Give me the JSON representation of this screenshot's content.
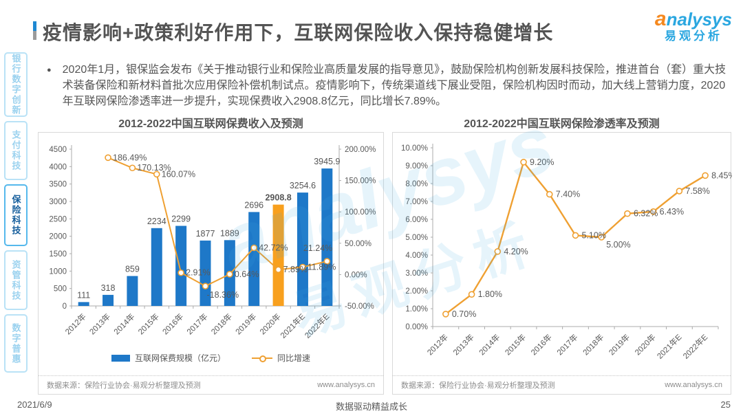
{
  "page": {
    "title": "疫情影响+政策利好作用下，互联网保险收入保持稳健增长",
    "footer": {
      "date": "2021/6/9",
      "slogan": "数据驱动精益成长",
      "page_number": "25"
    }
  },
  "logo": {
    "brand_first": "a",
    "brand_rest": "nalysys",
    "brand_cn": "易观分析"
  },
  "watermark": {
    "line1": "analysys",
    "line2": "易观分析"
  },
  "sidebar": {
    "items": [
      {
        "label": "银行数字创新",
        "active": false
      },
      {
        "label": "支付科技",
        "active": false
      },
      {
        "label": "保险科技",
        "active": true
      },
      {
        "label": "资管科技",
        "active": false
      },
      {
        "label": "数字普惠",
        "active": false
      }
    ]
  },
  "bullet": {
    "dot": "●",
    "text": "2020年1月，银保监会发布《关于推动银行业和保险业高质量发展的指导意见》，鼓励保险机构创新发展科技保险，推进首台（套）重大技术装备保险和新材料首批次应用保险补偿机制试点。疫情影响下，传统渠道线下展业受阻，保险机构因时而动，加大线上营销力度，2020年互联网保险渗透率进一步提升，实现保费收入2908.8亿元，同比增长7.89%。"
  },
  "chart_data": [
    {
      "type": "bar",
      "title": "2012-2022中国互联网保费收入及预测",
      "categories": [
        "2012年",
        "2013年",
        "2014年",
        "2015年",
        "2016年",
        "2017年",
        "2018年",
        "2019年",
        "2020年",
        "2021年E",
        "2022年E"
      ],
      "series": [
        {
          "name": "互联网保费规模（亿元）",
          "type": "bar",
          "values": [
            111,
            318,
            859,
            2234,
            2299,
            1877,
            1889,
            2696,
            2908.8,
            3254.6,
            3945.9
          ],
          "labels": [
            "111",
            "318",
            "859",
            "2234",
            "2299",
            "1877",
            "1889",
            "2696",
            "2908.8",
            "3254.6",
            "3945.9"
          ]
        },
        {
          "name": "同比增速",
          "type": "line",
          "values": [
            null,
            186.49,
            170.13,
            160.07,
            2.91,
            -18.36,
            0.64,
            42.72,
            7.89,
            11.89,
            21.24
          ],
          "labels": [
            null,
            "186.49%",
            "170.13%",
            "160.07%",
            "2.91%",
            "-18.36%",
            "0.64%",
            "42.72%",
            "7.89%",
            "11.89%",
            "21.24%"
          ]
        }
      ],
      "left_axis": {
        "min": 0,
        "max": 4500,
        "step": 500,
        "tick_labels": [
          "0",
          "500",
          "1000",
          "1500",
          "2000",
          "2500",
          "3000",
          "3500",
          "4000",
          "4500"
        ]
      },
      "right_axis": {
        "min": -50,
        "max": 200,
        "step": 50,
        "tick_labels": [
          "-50.00%",
          "0.00%",
          "50.00%",
          "100.00%",
          "150.00%",
          "200.00%"
        ]
      },
      "highlight_index": 8,
      "colors": {
        "bar": "#1E78C8",
        "bar_highlight": "#F8A01E",
        "line": "#EFA032",
        "axis": "#ABABAB",
        "text": "#595959"
      },
      "source": "数据来源：保险行业协会·易观分析整理及预测",
      "site": "www.analysys.cn"
    },
    {
      "type": "line",
      "title": "2012-2022中国互联网保险渗透率及预测",
      "categories": [
        "2012年",
        "2013年",
        "2014年",
        "2015年",
        "2016年",
        "2017年",
        "2018年",
        "2019年",
        "2020年",
        "2021年E",
        "2022年E"
      ],
      "values": [
        0.7,
        1.8,
        4.2,
        9.2,
        7.4,
        5.1,
        5.0,
        6.32,
        6.43,
        7.58,
        8.45
      ],
      "labels": [
        "0.70%",
        "1.80%",
        "4.20%",
        "9.20%",
        "7.40%",
        "5.10%",
        "5.00%",
        "6.32%",
        "6.43%",
        "7.58%",
        "8.45%"
      ],
      "y_axis": {
        "min": 0,
        "max": 10,
        "step": 1,
        "tick_labels": [
          "0.00%",
          "1.00%",
          "2.00%",
          "3.00%",
          "4.00%",
          "5.00%",
          "6.00%",
          "7.00%",
          "8.00%",
          "9.00%",
          "10.00%"
        ]
      },
      "colors": {
        "line": "#EFA032",
        "axis": "#ABABAB",
        "text": "#595959"
      },
      "source": "数据来源：保险行业协会·易观分析整理及预测",
      "site": "www.analysys.cn"
    }
  ]
}
